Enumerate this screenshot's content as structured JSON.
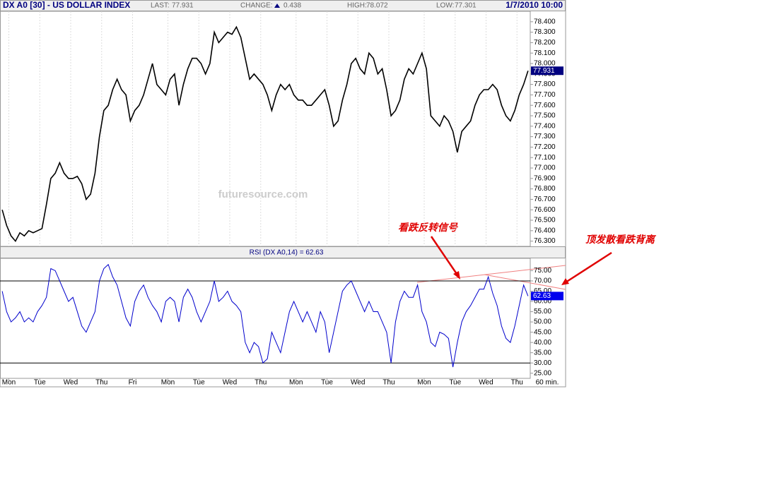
{
  "chart_data": [
    {
      "type": "line",
      "title": "DX A0 [30] - US DOLLAR INDEX",
      "stats": [
        {
          "label": "LAST:"
        },
        {
          "label": "CHANGE:",
          "value": 0.438
        },
        {
          "label": "HIGH:",
          "value": 78.072
        },
        {
          "label": "LOW:",
          "value": 77.301
        }
      ],
      "datetime": "1/7/2010 10:00",
      "watermark": "futuresource.com",
      "xlim": [
        0,
        120
      ],
      "ylim": [
        76.25,
        78.5
      ],
      "yticks": [
        {
          "value": 76.3,
          "label": "76.300"
        },
        {
          "value": 76.4,
          "label": "76.400"
        },
        {
          "value": 76.5,
          "label": "76.500"
        },
        {
          "value": 76.6,
          "label": "76.600"
        },
        {
          "value": 76.7,
          "label": "76.700"
        },
        {
          "value": 76.8,
          "label": "76.800"
        },
        {
          "value": 76.9,
          "label": "76.900"
        },
        {
          "value": 77.0,
          "label": "77.000"
        },
        {
          "value": 77.1,
          "label": "77.100"
        },
        {
          "value": 77.2,
          "label": "77.200"
        },
        {
          "value": 77.3,
          "label": "77.300"
        },
        {
          "value": 77.4,
          "label": "77.400"
        },
        {
          "value": 77.5,
          "label": "77.500"
        },
        {
          "value": 77.6,
          "label": "77.600"
        },
        {
          "value": 77.7,
          "label": "77.700"
        },
        {
          "value": 77.8,
          "label": "77.800"
        },
        {
          "value": 77.9,
          "label": "77.900"
        },
        {
          "value": 78.0,
          "label": "78.000"
        },
        {
          "value": 78.1,
          "label": "78.100"
        },
        {
          "value": 78.2,
          "label": "78.200"
        },
        {
          "value": 78.3,
          "label": "78.300"
        },
        {
          "value": 78.4,
          "label": "78.400"
        }
      ],
      "grid": true,
      "series": [
        {
          "name": "DX A0",
          "color": "#000000",
          "values": [
            76.6,
            76.45,
            76.35,
            76.3,
            76.38,
            76.35,
            76.4,
            76.38,
            76.4,
            76.42,
            76.65,
            76.9,
            76.95,
            77.05,
            76.95,
            76.9,
            76.9,
            76.92,
            76.85,
            76.7,
            76.75,
            76.95,
            77.3,
            77.55,
            77.6,
            77.75,
            77.85,
            77.75,
            77.7,
            77.45,
            77.55,
            77.6,
            77.7,
            77.85,
            78.0,
            77.8,
            77.75,
            77.7,
            77.85,
            77.9,
            77.6,
            77.8,
            77.95,
            78.05,
            78.05,
            78.0,
            77.9,
            78.0,
            78.3,
            78.2,
            78.25,
            78.3,
            78.28,
            78.35,
            78.25,
            78.05,
            77.85,
            77.9,
            77.85,
            77.8,
            77.7,
            77.55,
            77.7,
            77.8,
            77.75,
            77.8,
            77.7,
            77.65,
            77.65,
            77.6,
            77.6,
            77.65,
            77.7,
            77.75,
            77.6,
            77.4,
            77.45,
            77.65,
            77.8,
            78.0,
            78.05,
            77.95,
            77.9,
            78.1,
            78.05,
            77.9,
            77.95,
            77.75,
            77.5,
            77.55,
            77.65,
            77.85,
            77.95,
            77.9,
            78.0,
            78.1,
            77.95,
            77.5,
            77.45,
            77.4,
            77.5,
            77.45,
            77.35,
            77.15,
            77.35,
            77.4,
            77.45,
            77.6,
            77.7,
            77.75,
            77.75,
            77.8,
            77.75,
            77.6,
            77.5,
            77.45,
            77.55,
            77.7,
            77.8,
            77.931
          ]
        }
      ]
    },
    {
      "type": "line",
      "title": "RSI (DX A0,14) = 62.63",
      "xlim": [
        0,
        120
      ],
      "ylim": [
        22.5,
        81
      ],
      "yticks": [
        {
          "value": 25,
          "label": "25.00"
        },
        {
          "value": 30,
          "label": "30.00"
        },
        {
          "value": 35,
          "label": "35.00"
        },
        {
          "value": 40,
          "label": "40.00"
        },
        {
          "value": 45,
          "label": "45.00"
        },
        {
          "value": 50,
          "label": "50.00"
        },
        {
          "value": 55,
          "label": "55.00"
        },
        {
          "value": 60,
          "label": "60.00"
        },
        {
          "value": 65,
          "label": "65.00"
        },
        {
          "value": 70,
          "label": "70.00"
        },
        {
          "value": 75,
          "label": "75.00"
        }
      ],
      "reference_lines": [
        70,
        30
      ],
      "xticks": [
        {
          "value": 2,
          "label": "Mon"
        },
        {
          "value": 9,
          "label": "Tue"
        },
        {
          "value": 16,
          "label": "Wed"
        },
        {
          "value": 23,
          "label": "Thu"
        },
        {
          "value": 30,
          "label": "Fri"
        },
        {
          "value": 38,
          "label": "Mon"
        },
        {
          "value": 45,
          "label": "Tue"
        },
        {
          "value": 52,
          "label": "Wed"
        },
        {
          "value": 59,
          "label": "Thu"
        },
        {
          "value": 67,
          "label": "Mon"
        },
        {
          "value": 74,
          "label": "Tue"
        },
        {
          "value": 81,
          "label": "Wed"
        },
        {
          "value": 88,
          "label": "Thu"
        },
        {
          "value": 96,
          "label": "Mon"
        },
        {
          "value": 103,
          "label": "Tue"
        },
        {
          "value": 110,
          "label": "Wed"
        },
        {
          "value": 117,
          "label": "Thu"
        }
      ],
      "x_unit_label": "60 min.",
      "series": [
        {
          "name": "RSI",
          "color": "#0000cc",
          "values": [
            65,
            55,
            50,
            52,
            55,
            50,
            52,
            50,
            55,
            58,
            62,
            76,
            75,
            70,
            65,
            60,
            62,
            55,
            48,
            45,
            50,
            55,
            70,
            76,
            78,
            72,
            68,
            60,
            52,
            48,
            60,
            65,
            68,
            62,
            58,
            55,
            50,
            60,
            62,
            60,
            50,
            62,
            66,
            62,
            55,
            50,
            55,
            60,
            70,
            60,
            62,
            65,
            60,
            58,
            55,
            40,
            35,
            40,
            38,
            30,
            32,
            45,
            40,
            35,
            45,
            55,
            60,
            55,
            50,
            55,
            50,
            45,
            55,
            50,
            35,
            45,
            55,
            65,
            68,
            70,
            65,
            60,
            55,
            60,
            55,
            55,
            50,
            45,
            30,
            50,
            60,
            65,
            62,
            62,
            68,
            55,
            50,
            40,
            38,
            45,
            44,
            42,
            28,
            40,
            50,
            55,
            58,
            62,
            66,
            66,
            72,
            64,
            58,
            48,
            42,
            40,
            48,
            58,
            68,
            62.63
          ]
        }
      ],
      "annotations": [
        "看跌反转信号",
        "顶发散看跌背离"
      ]
    }
  ]
}
